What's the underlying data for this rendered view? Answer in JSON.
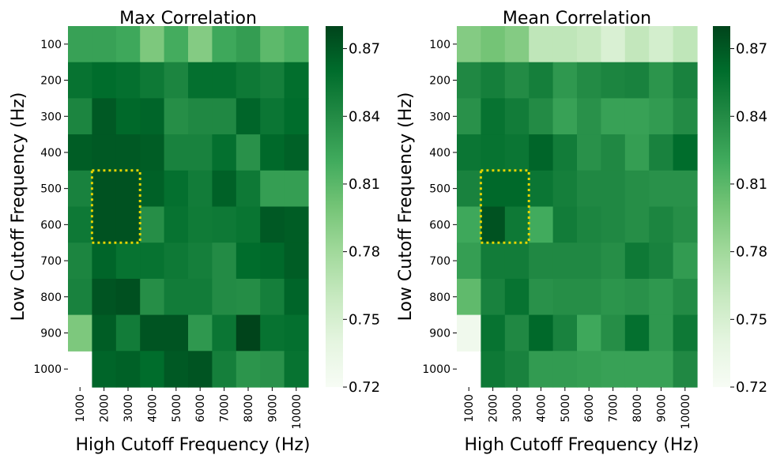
{
  "chart_data": [
    {
      "type": "heatmap",
      "title": "Max Correlation",
      "xlabel": "High Cutoff Frequency (Hz)",
      "ylabel": "Low Cutoff Frequency (Hz)",
      "x_categories": [
        "1000",
        "2000",
        "3000",
        "4000",
        "5000",
        "6000",
        "7000",
        "8000",
        "9000",
        "10000"
      ],
      "y_categories": [
        "100",
        "200",
        "300",
        "400",
        "500",
        "600",
        "700",
        "800",
        "900",
        "1000"
      ],
      "colorbar": {
        "min": 0.72,
        "max": 0.88,
        "ticks": [
          "0.72",
          "0.75",
          "0.78",
          "0.81",
          "0.84",
          "0.87"
        ],
        "colormap": "Greens"
      },
      "values": [
        [
          0.826,
          0.826,
          0.822,
          0.796,
          0.819,
          0.793,
          0.822,
          0.829,
          0.809,
          0.816
        ],
        [
          0.856,
          0.86,
          0.858,
          0.852,
          0.844,
          0.858,
          0.858,
          0.852,
          0.848,
          0.859
        ],
        [
          0.844,
          0.87,
          0.862,
          0.864,
          0.838,
          0.842,
          0.842,
          0.864,
          0.854,
          0.86
        ],
        [
          0.868,
          0.87,
          0.87,
          0.868,
          0.846,
          0.846,
          0.858,
          0.836,
          0.862,
          0.866
        ],
        [
          0.846,
          0.873,
          0.873,
          0.866,
          0.858,
          0.85,
          0.866,
          0.852,
          0.828,
          0.828
        ],
        [
          0.852,
          0.873,
          0.873,
          0.838,
          0.856,
          0.851,
          0.852,
          0.855,
          0.87,
          0.868
        ],
        [
          0.844,
          0.864,
          0.856,
          0.856,
          0.852,
          0.848,
          0.84,
          0.86,
          0.862,
          0.868
        ],
        [
          0.846,
          0.872,
          0.874,
          0.838,
          0.85,
          0.85,
          0.84,
          0.839,
          0.848,
          0.864
        ],
        [
          0.796,
          0.868,
          0.85,
          0.872,
          0.872,
          0.832,
          0.854,
          0.882,
          0.856,
          0.858
        ],
        [
          null,
          0.864,
          0.866,
          0.86,
          0.87,
          0.872,
          0.848,
          0.834,
          0.836,
          0.856
        ]
      ],
      "highlight": {
        "x": [
          "2000",
          "3000"
        ],
        "y": [
          "500",
          "600"
        ],
        "style": "dotted",
        "color": "#e5d400"
      }
    },
    {
      "type": "heatmap",
      "title": "Mean Correlation",
      "xlabel": "High Cutoff Frequency (Hz)",
      "ylabel": "Low Cutoff Frequency (Hz)",
      "x_categories": [
        "1000",
        "2000",
        "3000",
        "4000",
        "5000",
        "6000",
        "7000",
        "8000",
        "9000",
        "10000"
      ],
      "y_categories": [
        "100",
        "200",
        "300",
        "400",
        "500",
        "600",
        "700",
        "800",
        "900",
        "1000"
      ],
      "colorbar": {
        "min": 0.72,
        "max": 0.88,
        "ticks": [
          "0.72",
          "0.75",
          "0.78",
          "0.81",
          "0.84",
          "0.87"
        ],
        "colormap": "Greens"
      },
      "values": [
        [
          0.793,
          0.8,
          0.793,
          0.764,
          0.764,
          0.76,
          0.748,
          0.762,
          0.752,
          0.764
        ],
        [
          0.842,
          0.848,
          0.84,
          0.848,
          0.832,
          0.84,
          0.844,
          0.846,
          0.834,
          0.846
        ],
        [
          0.836,
          0.856,
          0.85,
          0.84,
          0.826,
          0.836,
          0.826,
          0.826,
          0.83,
          0.84
        ],
        [
          0.854,
          0.856,
          0.854,
          0.864,
          0.85,
          0.836,
          0.842,
          0.828,
          0.846,
          0.86
        ],
        [
          0.846,
          0.862,
          0.862,
          0.854,
          0.848,
          0.842,
          0.842,
          0.838,
          0.836,
          0.836
        ],
        [
          0.822,
          0.873,
          0.852,
          0.82,
          0.85,
          0.844,
          0.842,
          0.838,
          0.844,
          0.838
        ],
        [
          0.828,
          0.85,
          0.85,
          0.842,
          0.842,
          0.842,
          0.838,
          0.852,
          0.846,
          0.83
        ],
        [
          0.808,
          0.846,
          0.856,
          0.836,
          0.838,
          0.838,
          0.834,
          0.836,
          0.832,
          0.84
        ],
        [
          0.728,
          0.856,
          0.842,
          0.862,
          0.846,
          0.822,
          0.838,
          0.858,
          0.832,
          0.852
        ],
        [
          null,
          0.852,
          0.846,
          0.83,
          0.83,
          0.828,
          0.826,
          0.826,
          0.826,
          0.842
        ]
      ],
      "highlight": {
        "x": [
          "2000",
          "3000"
        ],
        "y": [
          "500",
          "600"
        ],
        "style": "dotted",
        "color": "#e5d400"
      }
    }
  ]
}
